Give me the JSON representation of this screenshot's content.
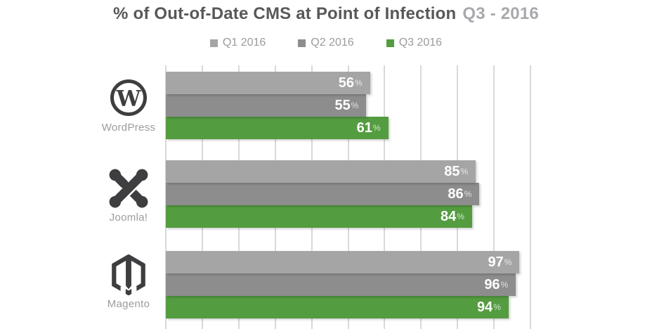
{
  "title": {
    "main": "% of Out-of-Date CMS at Point of Infection",
    "period": "Q3 - 2016"
  },
  "legend": [
    {
      "label": "Q1 2016",
      "color": "#a5a5a5"
    },
    {
      "label": "Q2 2016",
      "color": "#8d8d8d"
    },
    {
      "label": "Q3 2016",
      "color": "#549c40"
    }
  ],
  "chart_data": {
    "type": "bar",
    "orientation": "horizontal",
    "title": "% of Out-of-Date CMS at Point of Infection Q3 - 2016",
    "categories": [
      "WordPress",
      "Joomla!",
      "Magento"
    ],
    "series": [
      {
        "name": "Q1 2016",
        "color": "#a5a5a5",
        "textured": false,
        "values": [
          56,
          85,
          97
        ]
      },
      {
        "name": "Q2 2016",
        "color": "#8d8d8d",
        "textured": true,
        "values": [
          55,
          86,
          96
        ]
      },
      {
        "name": "Q3 2016",
        "color": "#549c40",
        "textured": false,
        "values": [
          61,
          84,
          94
        ]
      }
    ],
    "unit": "%",
    "xlim": [
      0,
      100
    ],
    "gridline_step": 10,
    "grid": true,
    "legend_position": "top",
    "value_labels": "inside-end"
  },
  "colors": {
    "grid": "#d9d9d9",
    "title_main": "#58585a",
    "title_period": "#a7a9ac",
    "muted_text": "#9b9b9b",
    "icon": "#3e3e40",
    "value_text": "#ffffff"
  }
}
